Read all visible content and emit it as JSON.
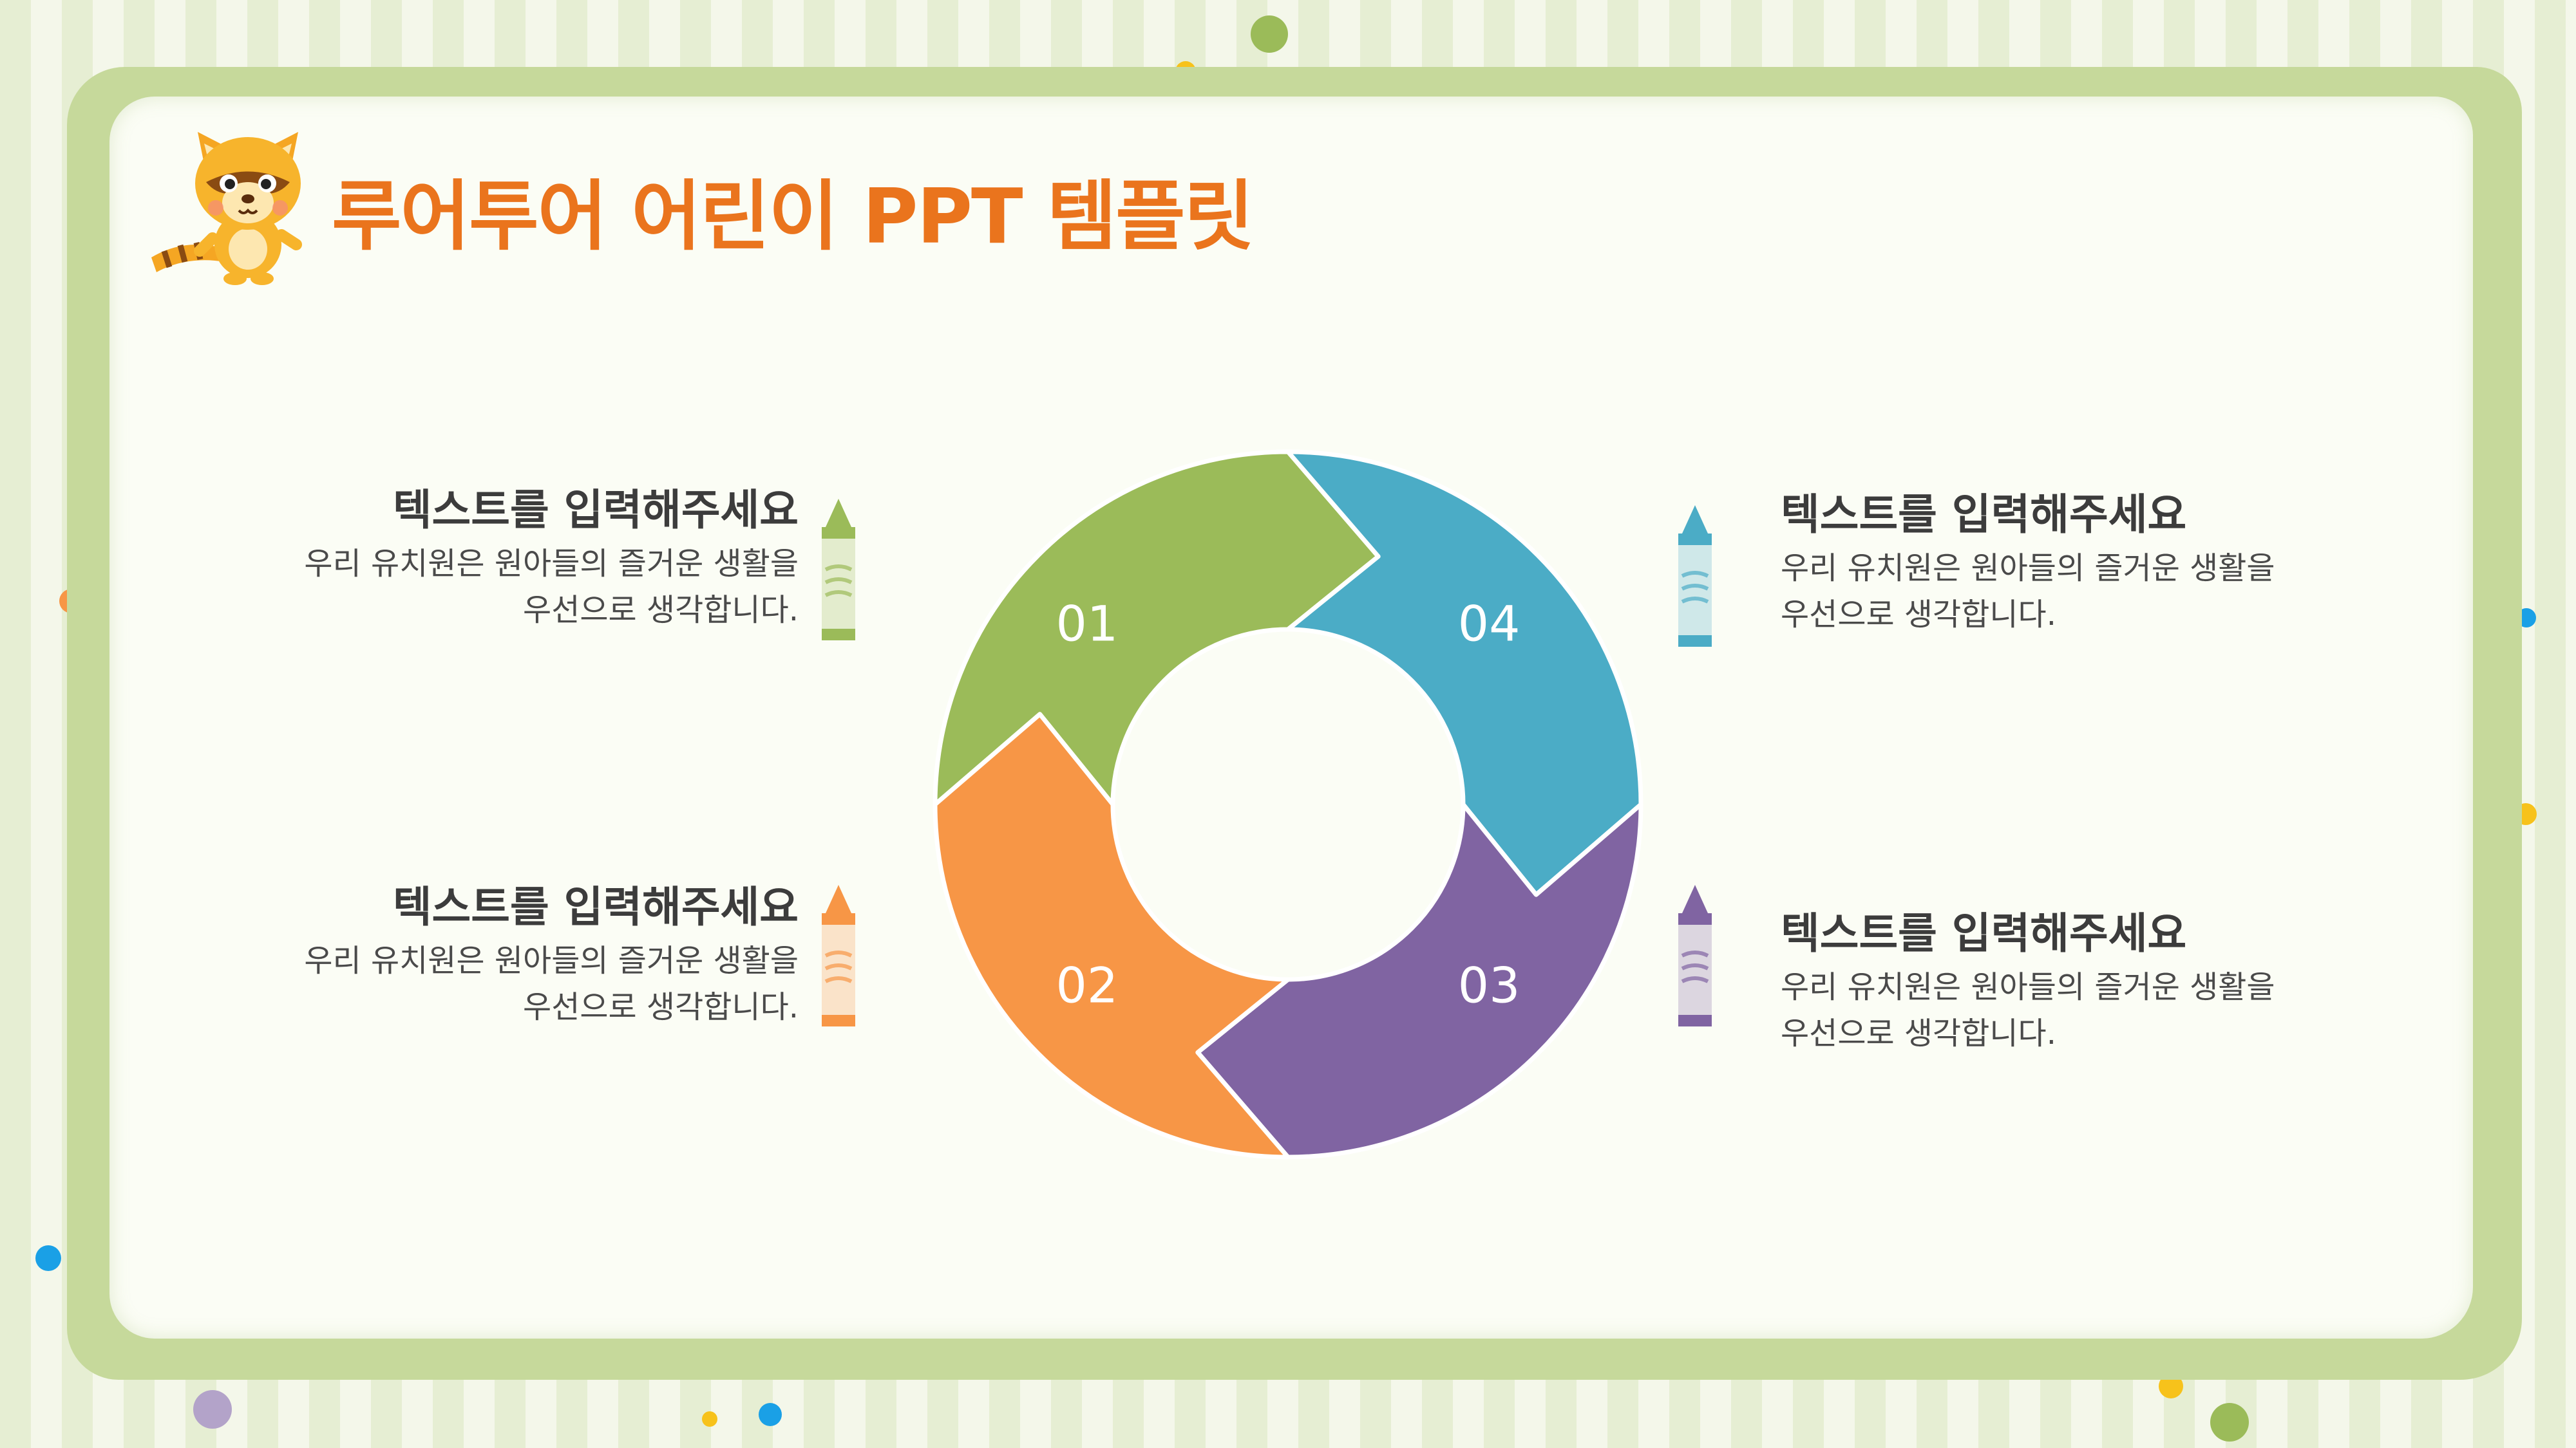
{
  "slide": {
    "title": "루어투어 어린이 PPT 템플릿",
    "colors": {
      "title": "#ea741d",
      "green": "#9bbb59",
      "teal": "#4bacc6",
      "purple": "#8064a2",
      "orange": "#f79646",
      "frame": "#c6d99b"
    }
  },
  "segments": [
    {
      "number": "01",
      "color": "#9bbb59"
    },
    {
      "number": "02",
      "color": "#f79646"
    },
    {
      "number": "03",
      "color": "#8064a2"
    },
    {
      "number": "04",
      "color": "#4bacc6"
    }
  ],
  "text_blocks": [
    {
      "heading": "텍스트를 입력해주세요",
      "line1": "우리 유치원은  원아들의 즐거운 생활을",
      "line2": "우선으로 생각합니다.",
      "crayon_color": "#9bbb59"
    },
    {
      "heading": "텍스트를 입력해주세요",
      "line1": "우리 유치원은  원아들의 즐거운 생활을",
      "line2": "우선으로 생각합니다.",
      "crayon_color": "#f79646"
    },
    {
      "heading": "텍스트를 입력해주세요",
      "line1": "우리 유치원은  원아들의 즐거운 생활을",
      "line2": "우선으로 생각합니다.",
      "crayon_color": "#4bacc6"
    },
    {
      "heading": "텍스트를 입력해주세요",
      "line1": "우리 유치원은  원아들의 즐거운 생활을",
      "line2": "우선으로 생각합니다.",
      "crayon_color": "#8064a2"
    }
  ],
  "icons": {
    "mascot": "raccoon-mascot-icon",
    "crayon": "crayon-icon"
  }
}
